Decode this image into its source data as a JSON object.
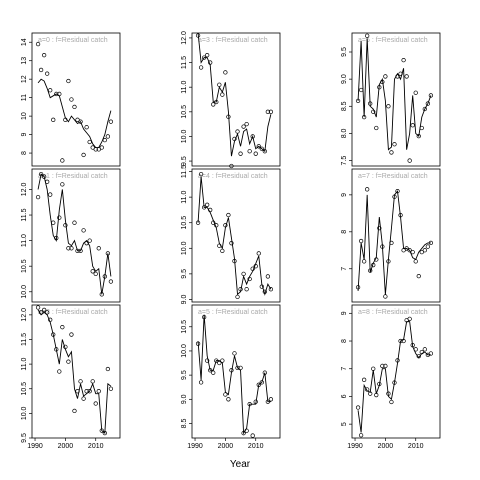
{
  "x_label": "Year",
  "chart_data": [
    {
      "type": "scatter",
      "title": "a=0 : f=Residual catch",
      "x": [
        1991,
        1992,
        1993,
        1994,
        1995,
        1996,
        1997,
        1998,
        1999,
        2000,
        2001,
        2002,
        2003,
        2004,
        2005,
        2006,
        2007,
        2008,
        2009,
        2010,
        2011,
        2012,
        2013,
        2014,
        2015
      ],
      "xlim": [
        1989,
        2018
      ],
      "ylim": [
        7.3,
        14.5
      ],
      "yticks": [
        8,
        9,
        10,
        11,
        12,
        13,
        14
      ],
      "series": [
        {
          "mode": "markers",
          "color": "#000000",
          "values": [
            13.9,
            12.5,
            13.3,
            12.3,
            11.4,
            9.8,
            11.2,
            11.2,
            7.6,
            9.8,
            11.9,
            10.9,
            10.5,
            9.8,
            9.7,
            7.9,
            9.4,
            8.6,
            8.3,
            8.2,
            8.2,
            8.3,
            8.7,
            8.9,
            9.7
          ]
        },
        {
          "mode": "lines",
          "color": "#000000",
          "values": [
            11.8,
            12.0,
            11.9,
            11.5,
            11.0,
            11.1,
            11.2,
            11.1,
            10.5,
            9.9,
            9.7,
            10.0,
            9.8,
            9.6,
            9.7,
            9.3,
            9.1,
            8.9,
            8.5,
            8.3,
            8.3,
            8.6,
            9.0,
            9.7,
            10.3
          ]
        }
      ]
    },
    {
      "type": "scatter",
      "title": "a=1 : f=Residual catch",
      "x": [
        1991,
        1992,
        1993,
        1994,
        1995,
        1996,
        1997,
        1998,
        1999,
        2000,
        2001,
        2002,
        2003,
        2004,
        2005,
        2006,
        2007,
        2008,
        2009,
        2010,
        2011,
        2012,
        2013,
        2014,
        2015
      ],
      "xlim": [
        1989,
        2018
      ],
      "ylim": [
        9.8,
        12.4
      ],
      "yticks": [
        {
          "value": 10,
          "label": "10.0"
        },
        10.5,
        {
          "value": 11,
          "label": "11.0"
        },
        11.5,
        {
          "value": 12,
          "label": "12.0"
        }
      ],
      "series": [
        {
          "mode": "markers",
          "color": "#000000",
          "values": [
            11.85,
            12.3,
            12.25,
            12.15,
            11.9,
            11.35,
            11.05,
            11.45,
            12.1,
            11.3,
            10.85,
            10.85,
            11.35,
            10.8,
            10.8,
            11.2,
            10.95,
            11.0,
            10.4,
            10.35,
            10.85,
            9.95,
            10.3,
            10.75,
            10.2
          ]
        },
        {
          "mode": "lines",
          "color": "#000000",
          "values": [
            12.0,
            12.3,
            12.25,
            12.0,
            11.5,
            11.1,
            11.0,
            11.6,
            12.0,
            11.4,
            10.95,
            10.9,
            11.0,
            10.8,
            10.8,
            10.95,
            11.0,
            10.9,
            10.5,
            10.4,
            10.45,
            9.95,
            10.3,
            10.75,
            10.3
          ]
        }
      ]
    },
    {
      "type": "scatter",
      "title": "a=2 : f=Residual catch",
      "x": [
        1991,
        1992,
        1993,
        1994,
        1995,
        1996,
        1997,
        1998,
        1999,
        2000,
        2001,
        2002,
        2003,
        2004,
        2005,
        2006,
        2007,
        2008,
        2009,
        2010,
        2011,
        2012,
        2013,
        2014,
        2015
      ],
      "xlim": [
        1989,
        2018
      ],
      "xticks": [
        1990,
        2000,
        2010
      ],
      "ylim": [
        9.5,
        12.2
      ],
      "yticks": [
        9.5,
        {
          "value": 10,
          "label": "10.0"
        },
        10.5,
        {
          "value": 11,
          "label": "11.0"
        },
        11.5,
        {
          "value": 12,
          "label": "12.0"
        }
      ],
      "series": [
        {
          "mode": "markers",
          "color": "#000000",
          "values": [
            12.15,
            12.05,
            12.1,
            12.05,
            11.9,
            11.6,
            11.3,
            10.85,
            11.75,
            11.35,
            11.05,
            11.6,
            10.05,
            10.45,
            10.65,
            10.3,
            10.45,
            10.45,
            10.65,
            10.2,
            10.45,
            9.65,
            9.6,
            10.9,
            10.5
          ]
        },
        {
          "mode": "lines",
          "color": "#000000",
          "values": [
            12.1,
            12.0,
            12.05,
            12.0,
            11.85,
            11.6,
            11.3,
            11.0,
            11.5,
            11.3,
            11.15,
            11.25,
            10.5,
            10.3,
            10.6,
            10.35,
            10.4,
            10.45,
            10.6,
            10.4,
            10.4,
            9.65,
            9.6,
            10.6,
            10.55
          ]
        }
      ]
    },
    {
      "type": "scatter",
      "title": "a=3 : f=Residual catch",
      "x": [
        1991,
        1992,
        1993,
        1994,
        1995,
        1996,
        1997,
        1998,
        1999,
        2000,
        2001,
        2002,
        2003,
        2004,
        2005,
        2006,
        2007,
        2008,
        2009,
        2010,
        2011,
        2012,
        2013,
        2014,
        2015
      ],
      "xlim": [
        1989,
        2018
      ],
      "ylim": [
        9.4,
        12.1
      ],
      "yticks": [
        9.5,
        {
          "value": 10,
          "label": "10.0"
        },
        10.5,
        {
          "value": 11,
          "label": "11.0"
        },
        11.5,
        {
          "value": 12,
          "label": "12.0"
        }
      ],
      "series": [
        {
          "mode": "markers",
          "color": "#000000",
          "values": [
            12.05,
            11.4,
            11.6,
            11.65,
            11.5,
            10.65,
            10.7,
            11.05,
            10.85,
            11.3,
            10.4,
            9.4,
            9.95,
            10.1,
            9.65,
            10.2,
            10.25,
            9.7,
            10.0,
            9.65,
            9.8,
            9.75,
            9.7,
            10.5,
            10.5
          ]
        },
        {
          "mode": "lines",
          "color": "#000000",
          "values": [
            12.1,
            11.5,
            11.6,
            11.6,
            11.45,
            10.7,
            10.7,
            11.0,
            10.9,
            11.1,
            10.5,
            9.6,
            9.9,
            10.05,
            9.8,
            10.1,
            10.15,
            9.85,
            10.0,
            9.75,
            9.8,
            9.75,
            9.7,
            10.2,
            10.45
          ]
        }
      ]
    },
    {
      "type": "scatter",
      "title": "a=4 : f=Residual catch",
      "x": [
        1991,
        1992,
        1993,
        1994,
        1995,
        1996,
        1997,
        1998,
        1999,
        2000,
        2001,
        2002,
        2003,
        2004,
        2005,
        2006,
        2007,
        2008,
        2009,
        2010,
        2011,
        2012,
        2013,
        2014,
        2015
      ],
      "xlim": [
        1989,
        2018
      ],
      "ylim": [
        8.95,
        11.55
      ],
      "yticks": [
        {
          "value": 9,
          "label": "9.0"
        },
        9.5,
        {
          "value": 10,
          "label": "10.0"
        },
        10.5,
        {
          "value": 11,
          "label": "11.0"
        },
        11.5
      ],
      "series": [
        {
          "mode": "markers",
          "color": "#000000",
          "values": [
            10.5,
            11.45,
            10.8,
            10.85,
            10.75,
            10.5,
            10.45,
            10.05,
            9.95,
            10.45,
            10.65,
            10.1,
            9.75,
            9.05,
            9.2,
            9.5,
            9.2,
            9.4,
            9.6,
            9.65,
            9.9,
            9.25,
            9.15,
            9.45,
            9.2
          ]
        },
        {
          "mode": "lines",
          "color": "#000000",
          "values": [
            10.5,
            11.4,
            10.8,
            10.8,
            10.7,
            10.55,
            10.4,
            10.1,
            10.0,
            10.4,
            10.6,
            10.2,
            9.8,
            9.1,
            9.15,
            9.45,
            9.3,
            9.45,
            9.55,
            9.7,
            9.85,
            9.3,
            9.1,
            9.3,
            9.2
          ]
        }
      ]
    },
    {
      "type": "scatter",
      "title": "a=5 : f=Residual catch",
      "x": [
        1991,
        1992,
        1993,
        1994,
        1995,
        1996,
        1997,
        1998,
        1999,
        2000,
        2001,
        2002,
        2003,
        2004,
        2005,
        2006,
        2007,
        2008,
        2009,
        2010,
        2011,
        2012,
        2013,
        2014,
        2015
      ],
      "xlim": [
        1989,
        2018
      ],
      "xticks": [
        1990,
        2000,
        2010
      ],
      "ylim": [
        8.2,
        10.95
      ],
      "yticks": [
        8.5,
        {
          "value": 9,
          "label": "9.0"
        },
        9.5,
        {
          "value": 10,
          "label": "10.0"
        },
        10.5
      ],
      "series": [
        {
          "mode": "markers",
          "color": "#000000",
          "values": [
            10.15,
            9.35,
            10.7,
            9.8,
            9.6,
            9.55,
            9.8,
            9.75,
            9.8,
            9.1,
            9.0,
            9.6,
            9.95,
            9.65,
            9.65,
            8.3,
            8.35,
            8.9,
            8.25,
            8.95,
            9.3,
            9.35,
            9.55,
            8.95,
            9.0
          ]
        },
        {
          "mode": "lines",
          "color": "#000000",
          "values": [
            10.2,
            9.4,
            10.75,
            9.9,
            9.6,
            9.6,
            9.8,
            9.8,
            9.75,
            9.15,
            9.1,
            9.55,
            9.9,
            9.65,
            9.6,
            8.3,
            8.4,
            8.9,
            8.9,
            8.9,
            9.3,
            9.35,
            9.55,
            8.95,
            8.95
          ]
        }
      ]
    },
    {
      "type": "scatter",
      "title": "a=6 : f=Residual catch",
      "x": [
        1991,
        1992,
        1993,
        1994,
        1995,
        1996,
        1997,
        1998,
        1999,
        2000,
        2001,
        2002,
        2003,
        2004,
        2005,
        2006,
        2007,
        2008,
        2009,
        2010,
        2011,
        2012,
        2013,
        2014,
        2015
      ],
      "xlim": [
        1989,
        2018
      ],
      "ylim": [
        7.4,
        9.85
      ],
      "yticks": [
        7.5,
        {
          "value": 8,
          "label": "8.0"
        },
        8.5,
        {
          "value": 9,
          "label": "9.0"
        },
        9.5
      ],
      "series": [
        {
          "mode": "markers",
          "color": "#000000",
          "values": [
            8.6,
            8.8,
            8.3,
            9.8,
            8.55,
            8.4,
            8.1,
            8.85,
            8.95,
            9.05,
            8.5,
            7.65,
            7.8,
            9.05,
            9.1,
            9.35,
            9.05,
            7.5,
            8.15,
            8.75,
            7.95,
            8.1,
            8.45,
            8.55,
            8.7
          ]
        },
        {
          "mode": "lines",
          "color": "#000000",
          "values": [
            8.6,
            9.7,
            8.3,
            9.75,
            8.5,
            8.45,
            8.3,
            8.9,
            9.0,
            8.6,
            7.7,
            7.75,
            9.0,
            9.1,
            9.0,
            9.2,
            7.7,
            8.0,
            8.7,
            8.0,
            7.95,
            8.3,
            8.45,
            8.55,
            8.7
          ]
        }
      ]
    },
    {
      "type": "scatter",
      "title": "a=7 : f=Residual catch",
      "x": [
        1991,
        1992,
        1993,
        1994,
        1995,
        1996,
        1997,
        1998,
        1999,
        2000,
        2001,
        2002,
        2003,
        2004,
        2005,
        2006,
        2007,
        2008,
        2009,
        2010,
        2011,
        2012,
        2013,
        2014,
        2015
      ],
      "xlim": [
        1989,
        2018
      ],
      "ylim": [
        6.1,
        9.7
      ],
      "yticks": [
        7,
        8,
        9
      ],
      "series": [
        {
          "mode": "markers",
          "color": "#000000",
          "values": [
            6.5,
            7.75,
            7.2,
            9.15,
            6.95,
            7.1,
            7.25,
            8.1,
            7.6,
            6.25,
            7.2,
            7.7,
            8.95,
            9.1,
            8.45,
            7.5,
            7.55,
            7.5,
            7.45,
            7.2,
            6.8,
            7.45,
            7.5,
            7.6,
            7.7
          ]
        },
        {
          "mode": "lines",
          "color": "#000000",
          "values": [
            6.4,
            7.7,
            7.25,
            9.0,
            6.9,
            7.15,
            7.3,
            8.4,
            7.65,
            6.3,
            7.25,
            8.1,
            9.0,
            9.1,
            8.4,
            7.55,
            7.55,
            7.5,
            7.3,
            7.25,
            7.45,
            7.55,
            7.65,
            7.7,
            7.7
          ]
        }
      ]
    },
    {
      "type": "scatter",
      "title": "a=8 : f=Residual catch",
      "x": [
        1991,
        1992,
        1993,
        1994,
        1995,
        1996,
        1997,
        1998,
        1999,
        2000,
        2001,
        2002,
        2003,
        2004,
        2005,
        2006,
        2007,
        2008,
        2009,
        2010,
        2011,
        2012,
        2013,
        2014,
        2015
      ],
      "xlim": [
        1989,
        2018
      ],
      "xticks": [
        1990,
        2000,
        2010
      ],
      "ylim": [
        4.5,
        9.3
      ],
      "yticks": [
        5,
        6,
        7,
        8,
        9
      ],
      "series": [
        {
          "mode": "markers",
          "color": "#000000",
          "values": [
            5.6,
            4.6,
            6.6,
            6.25,
            6.1,
            7.0,
            6.05,
            6.45,
            7.1,
            7.1,
            6.1,
            5.8,
            6.5,
            7.3,
            8.0,
            8.0,
            8.75,
            8.8,
            7.85,
            7.7,
            7.45,
            7.6,
            7.7,
            7.5,
            7.55
          ]
        },
        {
          "mode": "lines",
          "color": "#000000",
          "values": [
            5.5,
            4.7,
            6.4,
            6.2,
            6.15,
            6.95,
            6.1,
            6.4,
            7.0,
            7.0,
            6.0,
            5.9,
            6.5,
            7.2,
            8.0,
            8.05,
            8.7,
            8.7,
            7.8,
            7.55,
            7.4,
            7.55,
            7.6,
            7.5,
            7.5
          ]
        }
      ]
    }
  ]
}
